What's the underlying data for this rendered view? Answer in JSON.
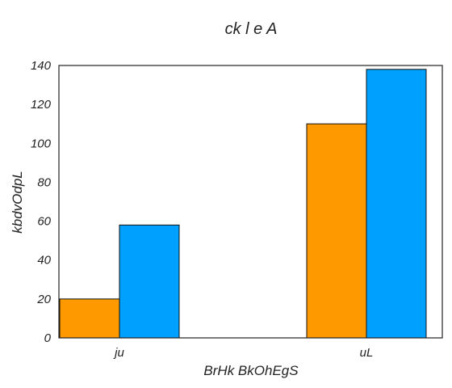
{
  "chart_data": {
    "type": "bar",
    "title": "ck  l e A",
    "xlabel": "BrHk  BkOhEgS",
    "ylabel": "kbdvOdpL",
    "categories": [
      "ju",
      "uL"
    ],
    "series": [
      {
        "values": [
          20,
          110
        ],
        "color": "#ff9900"
      },
      {
        "values": [
          58,
          138
        ],
        "color": "#00a0ff"
      }
    ],
    "ylim": [
      0,
      140
    ],
    "yticks": [
      0,
      20,
      40,
      60,
      80,
      100,
      120,
      140
    ],
    "grid": false,
    "legend": "none"
  }
}
